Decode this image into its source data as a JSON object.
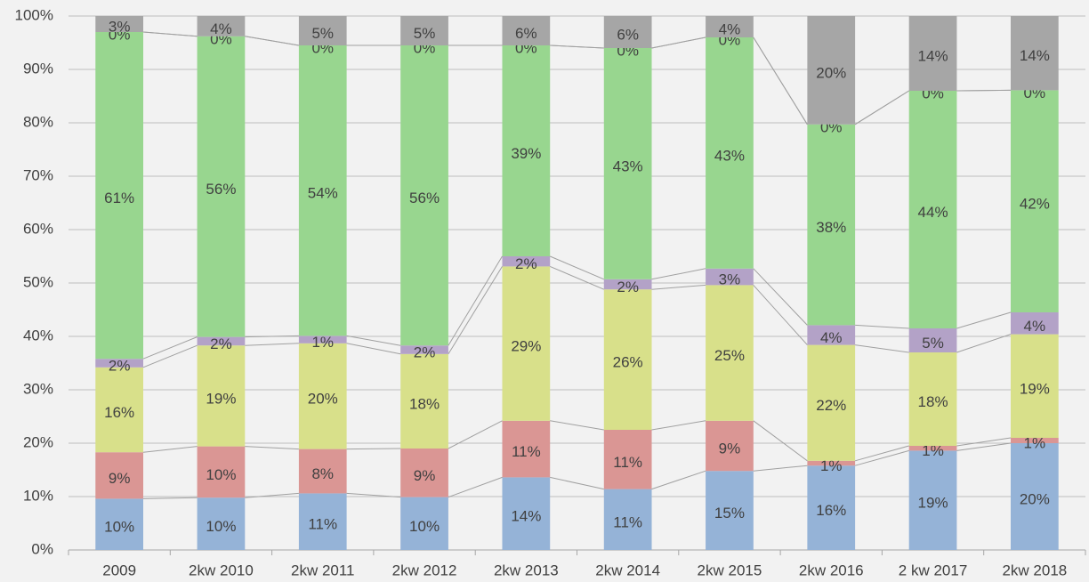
{
  "chart_data": {
    "type": "stacked_bar",
    "categories": [
      "2009",
      "2kw 2010",
      "2kw 2011",
      "2kw 2012",
      "2kw 2013",
      "2kw 2014",
      "2kw 2015",
      "2kw 2016",
      "2 kw 2017",
      "2kw 2018"
    ],
    "series": [
      {
        "color": "#95b3d7",
        "values": [
          9.6,
          9.8,
          10.6,
          9.9,
          13.6,
          11.4,
          14.8,
          15.8,
          18.6,
          20.0
        ],
        "value_labels": [
          "10%",
          "10%",
          "11%",
          "10%",
          "14%",
          "11%",
          "15%",
          "16%",
          "19%",
          "20%"
        ]
      },
      {
        "color": "#da9694",
        "values": [
          8.7,
          9.6,
          8.3,
          9.1,
          10.6,
          11.1,
          9.4,
          0.9,
          0.9,
          1.0
        ],
        "value_labels": [
          "9%",
          "10%",
          "8%",
          "9%",
          "11%",
          "11%",
          "9%",
          "1%",
          "1%",
          "1%"
        ]
      },
      {
        "color": "#d8e08a",
        "values": [
          15.9,
          18.9,
          19.8,
          17.7,
          28.9,
          26.3,
          25.4,
          21.7,
          17.5,
          19.4
        ],
        "value_labels": [
          "16%",
          "19%",
          "20%",
          "18%",
          "29%",
          "26%",
          "25%",
          "22%",
          "18%",
          "19%"
        ]
      },
      {
        "color": "#b3a2c7",
        "values": [
          1.6,
          1.6,
          1.4,
          1.6,
          1.9,
          1.9,
          3.1,
          3.7,
          4.5,
          4.1
        ],
        "value_labels": [
          "2%",
          "2%",
          "1%",
          "2%",
          "2%",
          "2%",
          "3%",
          "4%",
          "5%",
          "4%"
        ]
      },
      {
        "color": "#98d68f",
        "values": [
          61.2,
          56.3,
          54.4,
          56.2,
          39.5,
          43.3,
          43.3,
          37.6,
          44.5,
          41.6
        ],
        "value_labels": [
          "61%",
          "56%",
          "54%",
          "56%",
          "39%",
          "43%",
          "43%",
          "38%",
          "44%",
          "42%"
        ]
      },
      {
        "color": "#f2b77a",
        "values": [
          0,
          0,
          0,
          0,
          0,
          0,
          0,
          0,
          0,
          0
        ],
        "value_labels": [
          "0%",
          "0%",
          "0%",
          "0%",
          "0%",
          "0%",
          "0%",
          "0%",
          "0%",
          "0%"
        ]
      },
      {
        "color": "#a6a6a6",
        "values": [
          3.0,
          3.8,
          5.5,
          5.5,
          5.5,
          6.0,
          4.0,
          20.3,
          14.0,
          13.9
        ],
        "value_labels": [
          "3%",
          "4%",
          "5%",
          "5%",
          "6%",
          "6%",
          "4%",
          "20%",
          "14%",
          "14%"
        ]
      }
    ],
    "ylim": [
      0,
      100
    ],
    "yticks": [
      {
        "value": 0,
        "label": "0%"
      },
      {
        "value": 10,
        "label": "10%"
      },
      {
        "value": 20,
        "label": "20%"
      },
      {
        "value": 30,
        "label": "30%"
      },
      {
        "value": 40,
        "label": "40%"
      },
      {
        "value": 50,
        "label": "50%"
      },
      {
        "value": 60,
        "label": "60%"
      },
      {
        "value": 70,
        "label": "70%"
      },
      {
        "value": 80,
        "label": "80%"
      },
      {
        "value": 90,
        "label": "90%"
      },
      {
        "value": 100,
        "label": "100%"
      }
    ],
    "grid": true
  }
}
